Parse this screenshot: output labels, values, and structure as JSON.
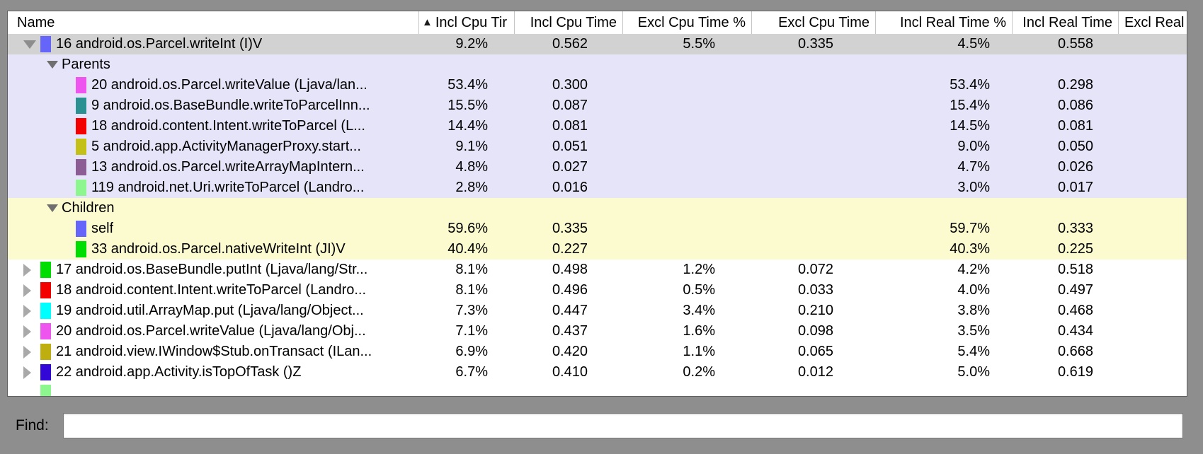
{
  "window": {
    "background": "#8e8e8e"
  },
  "table": {
    "sort_indicator": "▲",
    "columns": [
      {
        "key": "name",
        "label": "Name"
      },
      {
        "key": "incl_cpu_pct",
        "label": "Incl Cpu Tir",
        "sorted": "ascending"
      },
      {
        "key": "incl_cpu_time",
        "label": "Incl Cpu Time"
      },
      {
        "key": "excl_cpu_pct",
        "label": "Excl Cpu Time %"
      },
      {
        "key": "excl_cpu_time",
        "label": "Excl Cpu Time"
      },
      {
        "key": "incl_real_pct",
        "label": "Incl Real Time %"
      },
      {
        "key": "incl_real_time",
        "label": "Incl Real Time"
      },
      {
        "key": "excl_real",
        "label": "Excl Real"
      }
    ],
    "rows": [
      {
        "type": "toplevel",
        "expanded": true,
        "bg": "selected",
        "swatch": "#6565fa",
        "name": "16 android.os.Parcel.writeInt (I)V",
        "values": [
          "9.2%",
          "0.562",
          "5.5%",
          "0.335",
          "4.5%",
          "0.558",
          ""
        ]
      },
      {
        "type": "section",
        "bg": "parents",
        "name": "Parents",
        "values": [
          "",
          "",
          "",
          "",
          "",
          "",
          ""
        ]
      },
      {
        "type": "sub",
        "bg": "parents",
        "swatch": "#ee55ee",
        "name": "20 android.os.Parcel.writeValue (Ljava/lan...",
        "values": [
          "53.4%",
          "0.300",
          "",
          "",
          "53.4%",
          "0.298",
          ""
        ]
      },
      {
        "type": "sub",
        "bg": "parents",
        "swatch": "#2b9090",
        "name": "9 android.os.BaseBundle.writeToParcelInn...",
        "values": [
          "15.5%",
          "0.087",
          "",
          "",
          "15.4%",
          "0.086",
          ""
        ]
      },
      {
        "type": "sub",
        "bg": "parents",
        "swatch": "#f30000",
        "name": "18 android.content.Intent.writeToParcel (L...",
        "values": [
          "14.4%",
          "0.081",
          "",
          "",
          "14.5%",
          "0.081",
          ""
        ]
      },
      {
        "type": "sub",
        "bg": "parents",
        "swatch": "#c3c117",
        "name": "5 android.app.ActivityManagerProxy.start...",
        "values": [
          "9.1%",
          "0.051",
          "",
          "",
          "9.0%",
          "0.050",
          ""
        ]
      },
      {
        "type": "sub",
        "bg": "parents",
        "swatch": "#8b5d94",
        "name": "13 android.os.Parcel.writeArrayMapIntern...",
        "values": [
          "4.8%",
          "0.027",
          "",
          "",
          "4.7%",
          "0.026",
          ""
        ]
      },
      {
        "type": "sub",
        "bg": "parents",
        "swatch": "#8ef68e",
        "name": "119 android.net.Uri.writeToParcel (Landro...",
        "values": [
          "2.8%",
          "0.016",
          "",
          "",
          "3.0%",
          "0.017",
          ""
        ]
      },
      {
        "type": "section",
        "bg": "children",
        "name": "Children",
        "values": [
          "",
          "",
          "",
          "",
          "",
          "",
          ""
        ]
      },
      {
        "type": "sub",
        "bg": "children",
        "swatch": "#6565fa",
        "name": "self",
        "values": [
          "59.6%",
          "0.335",
          "",
          "",
          "59.7%",
          "0.333",
          ""
        ]
      },
      {
        "type": "sub",
        "bg": "children",
        "swatch": "#00dd00",
        "name": "33 android.os.Parcel.nativeWriteInt (JI)V",
        "values": [
          "40.4%",
          "0.227",
          "",
          "",
          "40.3%",
          "0.225",
          ""
        ]
      },
      {
        "type": "toplevel",
        "expanded": false,
        "bg": "plain",
        "swatch": "#00dd00",
        "name": "17 android.os.BaseBundle.putInt (Ljava/lang/Str...",
        "values": [
          "8.1%",
          "0.498",
          "1.2%",
          "0.072",
          "4.2%",
          "0.518",
          ""
        ]
      },
      {
        "type": "toplevel",
        "expanded": false,
        "bg": "plain",
        "swatch": "#f30000",
        "name": "18 android.content.Intent.writeToParcel (Landro...",
        "values": [
          "8.1%",
          "0.496",
          "0.5%",
          "0.033",
          "4.0%",
          "0.497",
          ""
        ]
      },
      {
        "type": "toplevel",
        "expanded": false,
        "bg": "plain",
        "swatch": "#00ffff",
        "name": "19 android.util.ArrayMap.put (Ljava/lang/Object...",
        "values": [
          "7.3%",
          "0.447",
          "3.4%",
          "0.210",
          "3.8%",
          "0.468",
          ""
        ]
      },
      {
        "type": "toplevel",
        "expanded": false,
        "bg": "plain",
        "swatch": "#ee55ee",
        "name": "20 android.os.Parcel.writeValue (Ljava/lang/Obj...",
        "values": [
          "7.1%",
          "0.437",
          "1.6%",
          "0.098",
          "3.5%",
          "0.434",
          ""
        ]
      },
      {
        "type": "toplevel",
        "expanded": false,
        "bg": "plain",
        "swatch": "#bfae10",
        "name": "21 android.view.IWindow$Stub.onTransact (ILan...",
        "values": [
          "6.9%",
          "0.420",
          "1.1%",
          "0.065",
          "5.4%",
          "0.668",
          ""
        ]
      },
      {
        "type": "toplevel",
        "expanded": false,
        "bg": "plain",
        "swatch": "#3307d6",
        "name": "22 android.app.Activity.isTopOfTask ()Z",
        "values": [
          "6.7%",
          "0.410",
          "0.2%",
          "0.012",
          "5.0%",
          "0.619",
          ""
        ]
      },
      {
        "type": "partial",
        "bg": "plain",
        "swatch": "#8ef68e",
        "name": "",
        "values": [
          "",
          "",
          "",
          "",
          "",
          "",
          ""
        ]
      }
    ]
  },
  "find": {
    "label": "Find:",
    "value": ""
  }
}
